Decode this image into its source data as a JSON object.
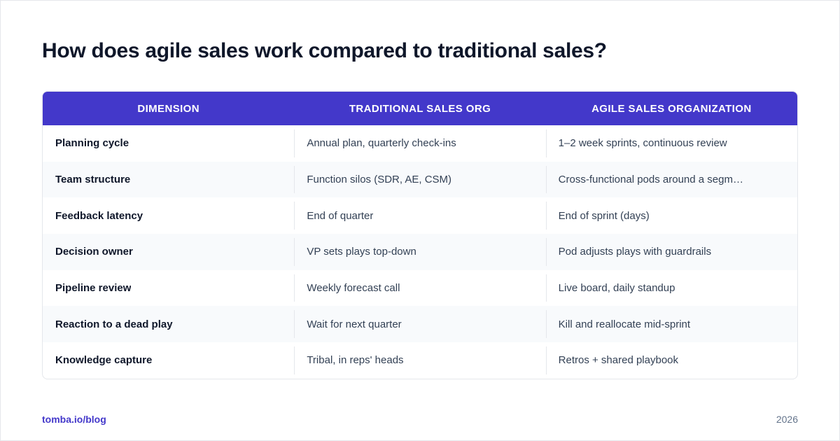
{
  "title": "How does agile sales work compared to traditional sales?",
  "table": {
    "headers": [
      "DIMENSION",
      "TRADITIONAL SALES ORG",
      "AGILE SALES ORGANIZATION"
    ],
    "rows": [
      [
        "Planning cycle",
        "Annual plan, quarterly check-ins",
        "1–2 week sprints, continuous review"
      ],
      [
        "Team structure",
        "Function silos (SDR, AE, CSM)",
        "Cross-functional pods around a segm…"
      ],
      [
        "Feedback latency",
        "End of quarter",
        "End of sprint (days)"
      ],
      [
        "Decision owner",
        "VP sets plays top-down",
        "Pod adjusts plays with guardrails"
      ],
      [
        "Pipeline review",
        "Weekly forecast call",
        "Live board, daily standup"
      ],
      [
        "Reaction to a dead play",
        "Wait for next quarter",
        "Kill and reallocate mid-sprint"
      ],
      [
        "Knowledge capture",
        "Tribal, in reps' heads",
        "Retros + shared playbook"
      ]
    ]
  },
  "footer": {
    "link": "tomba.io/blog",
    "year": "2026"
  },
  "colors": {
    "accent": "#4338ca",
    "title": "#0f172a",
    "stripe": "#f8fafc"
  }
}
